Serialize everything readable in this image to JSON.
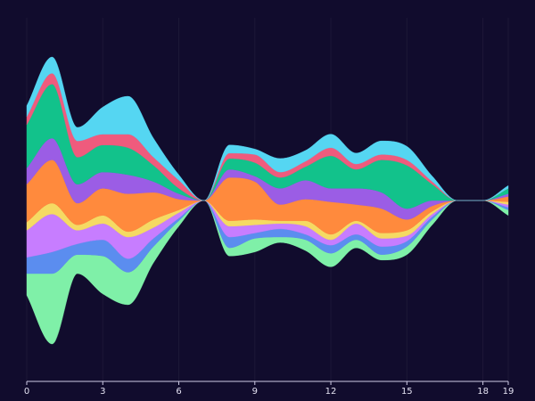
{
  "chart_data": {
    "type": "area",
    "subtype": "streamgraph",
    "offset": "silhouette",
    "curve": "smooth",
    "title": "",
    "xlabel": "",
    "ylabel": "",
    "background": "#110c2d",
    "grid": "vertical-faint",
    "legend": "none",
    "xlim": [
      0,
      19
    ],
    "x": [
      0,
      1,
      2,
      3,
      4,
      5,
      6,
      7,
      8,
      9,
      10,
      11,
      12,
      13,
      14,
      15,
      16,
      17,
      18,
      19
    ],
    "x_ticks": [
      0,
      3,
      6,
      9,
      12,
      15,
      18,
      19
    ],
    "x_tick_labels": [
      "0",
      "3",
      "6",
      "9",
      "12",
      "15",
      "18",
      "19"
    ],
    "series": [
      {
        "color": "#7ff0a8",
        "values": [
          8,
          26,
          7,
          14,
          12,
          6,
          2,
          0,
          3,
          5,
          2,
          4,
          5,
          3,
          2,
          3,
          2,
          0,
          0,
          2
        ]
      },
      {
        "color": "#5b8def",
        "values": [
          6,
          8,
          4,
          6,
          5,
          3,
          1,
          0,
          4,
          2,
          3,
          2,
          3,
          2,
          3,
          2,
          1,
          0,
          0,
          1
        ]
      },
      {
        "color": "#c77dff",
        "values": [
          10,
          14,
          5,
          6,
          8,
          4,
          2,
          0,
          4,
          3,
          2,
          3,
          2,
          4,
          3,
          2,
          1,
          0,
          0,
          1
        ]
      },
      {
        "color": "#f5da63",
        "values": [
          3,
          4,
          2,
          3,
          2,
          3,
          1,
          0,
          2,
          2,
          1,
          2,
          2,
          1,
          2,
          2,
          1,
          0,
          0,
          1
        ]
      },
      {
        "color": "#ff8a3d",
        "values": [
          14,
          16,
          8,
          10,
          14,
          10,
          4,
          0,
          16,
          14,
          6,
          8,
          12,
          6,
          9,
          4,
          2,
          0,
          0,
          2
        ]
      },
      {
        "color": "#9b5de5",
        "values": [
          6,
          8,
          7,
          6,
          7,
          4,
          2,
          0,
          3,
          2,
          6,
          7,
          5,
          6,
          6,
          4,
          2,
          0,
          0,
          1
        ]
      },
      {
        "color": "#12c28b",
        "values": [
          16,
          20,
          10,
          10,
          10,
          6,
          2,
          0,
          4,
          5,
          4,
          5,
          12,
          7,
          12,
          16,
          6,
          0,
          0,
          2
        ]
      },
      {
        "color": "#ef5b7d",
        "values": [
          3,
          4,
          6,
          4,
          5,
          3,
          3,
          0,
          2,
          3,
          2,
          2,
          3,
          2,
          2,
          2,
          1,
          0,
          0,
          0
        ]
      },
      {
        "color": "#55d6f2",
        "values": [
          4,
          6,
          5,
          10,
          14,
          7,
          2,
          0,
          3,
          2,
          5,
          4,
          5,
          4,
          5,
          5,
          2,
          0,
          0,
          1
        ]
      }
    ]
  }
}
